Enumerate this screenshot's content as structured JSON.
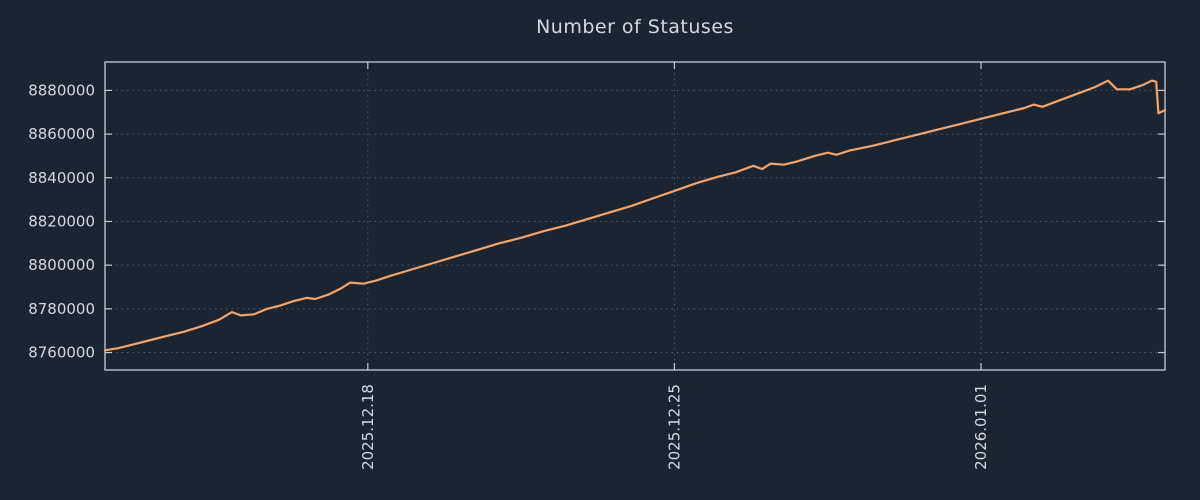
{
  "title": "Number of Statuses",
  "colors": {
    "background": "#1b2431",
    "line": "#f4a46a",
    "grid": "#8a94a6",
    "border": "#c7ccd4",
    "text": "#d4d9e0"
  },
  "chart_data": {
    "type": "line",
    "title": "Number of Statuses",
    "xlabel": "",
    "ylabel": "",
    "grid": true,
    "legend": "none",
    "x_unit": "days from 2025.12.12",
    "x_range": [
      0,
      24.2
    ],
    "y_range": [
      8752000,
      8893000
    ],
    "y_ticks": [
      8760000,
      8780000,
      8800000,
      8820000,
      8840000,
      8860000,
      8880000
    ],
    "x_ticks": [
      {
        "pos": 6,
        "label": "2025.12.18"
      },
      {
        "pos": 13,
        "label": "2025.12.25"
      },
      {
        "pos": 20,
        "label": "2026.01.01"
      }
    ],
    "series": [
      {
        "name": "statuses",
        "points": [
          [
            0.0,
            8761000
          ],
          [
            0.3,
            8762000
          ],
          [
            0.6,
            8763500
          ],
          [
            1.0,
            8765500
          ],
          [
            1.4,
            8767500
          ],
          [
            1.8,
            8769500
          ],
          [
            2.2,
            8772000
          ],
          [
            2.6,
            8775000
          ],
          [
            2.9,
            8778500
          ],
          [
            3.1,
            8777000
          ],
          [
            3.4,
            8777500
          ],
          [
            3.7,
            8780000
          ],
          [
            4.0,
            8781500
          ],
          [
            4.3,
            8783500
          ],
          [
            4.6,
            8785000
          ],
          [
            4.8,
            8784500
          ],
          [
            5.1,
            8786500
          ],
          [
            5.4,
            8789500
          ],
          [
            5.6,
            8792000
          ],
          [
            5.9,
            8791500
          ],
          [
            6.2,
            8793000
          ],
          [
            6.5,
            8795000
          ],
          [
            7.0,
            8798000
          ],
          [
            7.5,
            8801000
          ],
          [
            8.0,
            8804000
          ],
          [
            8.5,
            8807000
          ],
          [
            9.0,
            8810000
          ],
          [
            9.5,
            8812500
          ],
          [
            10.0,
            8815500
          ],
          [
            10.5,
            8818000
          ],
          [
            11.0,
            8821000
          ],
          [
            11.5,
            8824000
          ],
          [
            12.0,
            8827000
          ],
          [
            12.5,
            8830500
          ],
          [
            13.0,
            8834000
          ],
          [
            13.5,
            8837500
          ],
          [
            14.0,
            8840500
          ],
          [
            14.4,
            8842500
          ],
          [
            14.8,
            8845500
          ],
          [
            15.0,
            8844000
          ],
          [
            15.2,
            8846500
          ],
          [
            15.5,
            8846000
          ],
          [
            15.8,
            8847500
          ],
          [
            16.2,
            8850000
          ],
          [
            16.5,
            8851500
          ],
          [
            16.7,
            8850500
          ],
          [
            17.0,
            8852500
          ],
          [
            17.5,
            8854500
          ],
          [
            18.0,
            8857000
          ],
          [
            18.5,
            8859500
          ],
          [
            19.0,
            8862000
          ],
          [
            19.5,
            8864500
          ],
          [
            20.0,
            8867000
          ],
          [
            20.5,
            8869500
          ],
          [
            21.0,
            8872000
          ],
          [
            21.2,
            8873500
          ],
          [
            21.4,
            8872500
          ],
          [
            21.8,
            8875500
          ],
          [
            22.2,
            8878500
          ],
          [
            22.6,
            8881500
          ],
          [
            22.9,
            8884500
          ],
          [
            23.1,
            8880500
          ],
          [
            23.4,
            8880500
          ],
          [
            23.7,
            8882500
          ],
          [
            23.9,
            8884500
          ],
          [
            24.0,
            8884000
          ],
          [
            24.05,
            8869500
          ],
          [
            24.2,
            8871000
          ]
        ]
      }
    ]
  }
}
